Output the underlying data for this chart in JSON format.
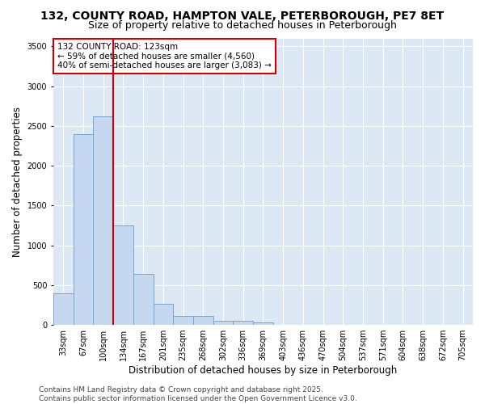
{
  "title_line1": "132, COUNTY ROAD, HAMPTON VALE, PETERBOROUGH, PE7 8ET",
  "title_line2": "Size of property relative to detached houses in Peterborough",
  "xlabel": "Distribution of detached houses by size in Peterborough",
  "ylabel": "Number of detached properties",
  "bar_values": [
    400,
    2400,
    2625,
    1250,
    640,
    265,
    110,
    110,
    55,
    50,
    30,
    0,
    0,
    0,
    0,
    0,
    0,
    0,
    0,
    0,
    0
  ],
  "bar_labels": [
    "33sqm",
    "67sqm",
    "100sqm",
    "134sqm",
    "167sqm",
    "201sqm",
    "235sqm",
    "268sqm",
    "302sqm",
    "336sqm",
    "369sqm",
    "403sqm",
    "436sqm",
    "470sqm",
    "504sqm",
    "537sqm",
    "571sqm",
    "604sqm",
    "638sqm",
    "672sqm",
    "705sqm"
  ],
  "bar_color": "#c5d8f0",
  "bar_edge_color": "#6fa8d6",
  "vline_color": "#cc0000",
  "annotation_title": "132 COUNTY ROAD: 123sqm",
  "annotation_line1": "← 59% of detached houses are smaller (4,560)",
  "annotation_line2": "40% of semi-detached houses are larger (3,083) →",
  "annotation_box_edgecolor": "#cc0000",
  "ylim": [
    0,
    3600
  ],
  "yticks": [
    0,
    500,
    1000,
    1500,
    2000,
    2500,
    3000,
    3500
  ],
  "footer_line1": "Contains HM Land Registry data © Crown copyright and database right 2025.",
  "footer_line2": "Contains public sector information licensed under the Open Government Licence v3.0.",
  "plot_bg_color": "#dce9f5",
  "grid_color": "#ffffff",
  "title_fontsize": 10,
  "subtitle_fontsize": 9,
  "axis_label_fontsize": 8.5,
  "tick_fontsize": 7,
  "annotation_fontsize": 7.5,
  "footer_fontsize": 6.5
}
